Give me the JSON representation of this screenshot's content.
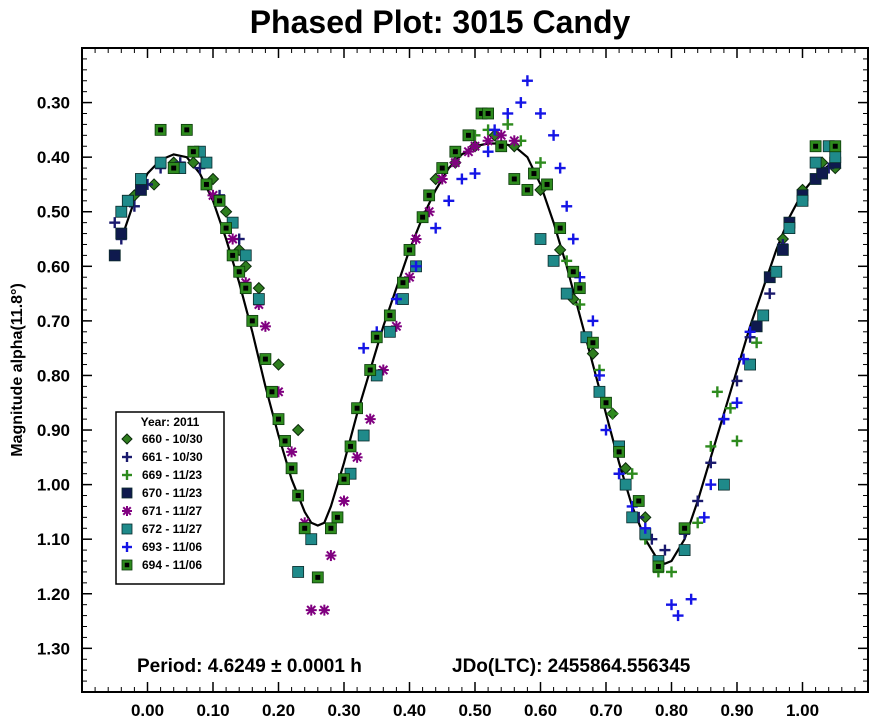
{
  "chart_data": {
    "type": "scatter",
    "title": "Phased Plot: 3015 Candy",
    "xlabel": "",
    "ylabel": "Magnitude alpha(11.8°)",
    "xlim": [
      -0.1,
      1.1
    ],
    "ylim": [
      0.2,
      1.38
    ],
    "y_inverted": true,
    "x_ticks": [
      "0.00",
      "0.10",
      "0.20",
      "0.30",
      "0.40",
      "0.50",
      "0.60",
      "0.70",
      "0.80",
      "0.90",
      "1.00"
    ],
    "y_ticks": [
      "0.30",
      "0.40",
      "0.50",
      "0.60",
      "0.70",
      "0.80",
      "0.90",
      "1.00",
      "1.10",
      "1.20",
      "1.30"
    ],
    "grid": false,
    "legend": {
      "placement": "lower-left",
      "title": "Year: 2011",
      "entries": [
        {
          "label": "660 - 10/30",
          "marker": "diamond",
          "color": "#2e7d1e"
        },
        {
          "label": "661 - 10/30",
          "marker": "plus",
          "color": "#1a1a6e"
        },
        {
          "label": "669 - 11/23",
          "marker": "plus",
          "color": "#2e8b1e"
        },
        {
          "label": "670 - 11/23",
          "marker": "square",
          "color": "#0f1a4e"
        },
        {
          "label": "671 - 11/27",
          "marker": "asterisk",
          "color": "#800080"
        },
        {
          "label": "672 - 11/27",
          "marker": "square",
          "color": "#1f8a8a"
        },
        {
          "label": "693 - 11/06",
          "marker": "plus",
          "color": "#1515e6"
        },
        {
          "label": "694 - 11/06",
          "marker": "square-dot",
          "color": "#2e8b1e"
        }
      ]
    },
    "fit_curve": {
      "color": "#000000",
      "points": [
        [
          -0.04,
          0.55
        ],
        [
          -0.02,
          0.48
        ],
        [
          0.0,
          0.43
        ],
        [
          0.02,
          0.405
        ],
        [
          0.04,
          0.395
        ],
        [
          0.06,
          0.4
        ],
        [
          0.08,
          0.43
        ],
        [
          0.1,
          0.48
        ],
        [
          0.12,
          0.55
        ],
        [
          0.14,
          0.63
        ],
        [
          0.16,
          0.72
        ],
        [
          0.18,
          0.82
        ],
        [
          0.2,
          0.91
        ],
        [
          0.22,
          0.99
        ],
        [
          0.24,
          1.05
        ],
        [
          0.25,
          1.07
        ],
        [
          0.26,
          1.075
        ],
        [
          0.27,
          1.07
        ],
        [
          0.28,
          1.04
        ],
        [
          0.3,
          0.96
        ],
        [
          0.32,
          0.87
        ],
        [
          0.34,
          0.79
        ],
        [
          0.36,
          0.71
        ],
        [
          0.38,
          0.64
        ],
        [
          0.4,
          0.57
        ],
        [
          0.42,
          0.51
        ],
        [
          0.44,
          0.46
        ],
        [
          0.46,
          0.42
        ],
        [
          0.48,
          0.395
        ],
        [
          0.5,
          0.38
        ],
        [
          0.52,
          0.375
        ],
        [
          0.54,
          0.375
        ],
        [
          0.56,
          0.38
        ],
        [
          0.58,
          0.4
        ],
        [
          0.6,
          0.45
        ],
        [
          0.62,
          0.52
        ],
        [
          0.64,
          0.6
        ],
        [
          0.66,
          0.69
        ],
        [
          0.68,
          0.78
        ],
        [
          0.7,
          0.87
        ],
        [
          0.72,
          0.96
        ],
        [
          0.74,
          1.04
        ],
        [
          0.76,
          1.1
        ],
        [
          0.78,
          1.14
        ],
        [
          0.79,
          1.145
        ],
        [
          0.8,
          1.14
        ],
        [
          0.82,
          1.1
        ],
        [
          0.84,
          1.03
        ],
        [
          0.86,
          0.95
        ],
        [
          0.88,
          0.87
        ],
        [
          0.9,
          0.79
        ],
        [
          0.92,
          0.71
        ],
        [
          0.94,
          0.64
        ],
        [
          0.96,
          0.57
        ],
        [
          0.98,
          0.51
        ],
        [
          1.0,
          0.465
        ],
        [
          1.02,
          0.435
        ],
        [
          1.04,
          0.415
        ],
        [
          1.05,
          0.41
        ]
      ]
    },
    "series": [
      {
        "name": "660 - 10/30",
        "points": [
          [
            -0.02,
            0.47
          ],
          [
            0.01,
            0.45
          ],
          [
            0.04,
            0.41
          ],
          [
            0.07,
            0.41
          ],
          [
            0.1,
            0.44
          ],
          [
            0.12,
            0.5
          ],
          [
            0.14,
            0.57
          ],
          [
            0.15,
            0.6
          ],
          [
            0.17,
            0.64
          ],
          [
            0.2,
            0.78
          ],
          [
            0.23,
            0.9
          ],
          [
            0.44,
            0.44
          ],
          [
            0.47,
            0.41
          ],
          [
            0.5,
            0.38
          ],
          [
            0.53,
            0.36
          ],
          [
            0.56,
            0.38
          ],
          [
            0.6,
            0.46
          ],
          [
            0.63,
            0.57
          ],
          [
            0.65,
            0.66
          ],
          [
            0.68,
            0.76
          ],
          [
            0.71,
            0.87
          ],
          [
            0.73,
            0.97
          ],
          [
            0.76,
            1.06
          ],
          [
            0.97,
            0.55
          ],
          [
            1.0,
            0.46
          ],
          [
            1.03,
            0.41
          ],
          [
            1.05,
            0.42
          ]
        ]
      },
      {
        "name": "661 - 10/30",
        "points": [
          [
            -0.05,
            0.52
          ],
          [
            -0.04,
            0.55
          ],
          [
            -0.02,
            0.49
          ],
          [
            0.0,
            0.45
          ],
          [
            0.02,
            0.42
          ],
          [
            0.05,
            0.41
          ],
          [
            0.08,
            0.42
          ],
          [
            0.11,
            0.47
          ],
          [
            0.14,
            0.55
          ],
          [
            0.72,
            0.98
          ],
          [
            0.75,
            1.06
          ],
          [
            0.77,
            1.1
          ],
          [
            0.79,
            1.12
          ],
          [
            0.82,
            1.09
          ],
          [
            0.84,
            1.03
          ],
          [
            0.86,
            0.96
          ],
          [
            0.88,
            0.88
          ],
          [
            0.9,
            0.81
          ],
          [
            0.92,
            0.73
          ],
          [
            0.95,
            0.65
          ],
          [
            0.97,
            0.56
          ],
          [
            1.0,
            0.48
          ],
          [
            1.02,
            0.44
          ],
          [
            1.04,
            0.42
          ]
        ]
      },
      {
        "name": "669 - 11/23",
        "points": [
          [
            0.5,
            0.36
          ],
          [
            0.52,
            0.35
          ],
          [
            0.55,
            0.34
          ],
          [
            0.57,
            0.37
          ],
          [
            0.6,
            0.41
          ],
          [
            0.64,
            0.59
          ],
          [
            0.66,
            0.67
          ],
          [
            0.69,
            0.79
          ],
          [
            0.71,
            0.87
          ],
          [
            0.74,
            0.98
          ],
          [
            0.76,
            1.1
          ],
          [
            0.78,
            1.16
          ],
          [
            0.8,
            1.16
          ],
          [
            0.82,
            1.12
          ],
          [
            0.84,
            1.07
          ],
          [
            0.86,
            0.93
          ],
          [
            0.87,
            0.83
          ],
          [
            0.89,
            0.86
          ],
          [
            0.9,
            0.92
          ],
          [
            0.93,
            0.74
          ]
        ]
      },
      {
        "name": "670 - 11/23",
        "points": [
          [
            -0.05,
            0.58
          ],
          [
            -0.04,
            0.54
          ],
          [
            -0.03,
            0.48
          ],
          [
            -0.01,
            0.46
          ],
          [
            0.93,
            0.71
          ],
          [
            0.95,
            0.62
          ],
          [
            0.97,
            0.57
          ],
          [
            0.98,
            0.52
          ],
          [
            1.0,
            0.47
          ],
          [
            1.02,
            0.44
          ],
          [
            1.03,
            0.43
          ],
          [
            1.05,
            0.41
          ]
        ]
      },
      {
        "name": "671 - 11/27",
        "points": [
          [
            0.1,
            0.47
          ],
          [
            0.13,
            0.55
          ],
          [
            0.15,
            0.63
          ],
          [
            0.17,
            0.67
          ],
          [
            0.18,
            0.71
          ],
          [
            0.2,
            0.83
          ],
          [
            0.22,
            0.94
          ],
          [
            0.23,
            1.02
          ],
          [
            0.24,
            1.07
          ],
          [
            0.25,
            1.23
          ],
          [
            0.27,
            1.23
          ],
          [
            0.28,
            1.13
          ],
          [
            0.3,
            1.03
          ],
          [
            0.32,
            0.95
          ],
          [
            0.34,
            0.88
          ],
          [
            0.36,
            0.79
          ],
          [
            0.38,
            0.71
          ],
          [
            0.4,
            0.62
          ],
          [
            0.41,
            0.55
          ],
          [
            0.43,
            0.5
          ],
          [
            0.45,
            0.44
          ],
          [
            0.47,
            0.41
          ],
          [
            0.49,
            0.39
          ],
          [
            0.5,
            0.38
          ],
          [
            0.52,
            0.37
          ],
          [
            0.54,
            0.36
          ],
          [
            0.56,
            0.37
          ]
        ]
      },
      {
        "name": "672 - 11/27",
        "points": [
          [
            -0.04,
            0.5
          ],
          [
            -0.03,
            0.48
          ],
          [
            -0.01,
            0.44
          ],
          [
            0.02,
            0.41
          ],
          [
            0.05,
            0.42
          ],
          [
            0.08,
            0.39
          ],
          [
            0.09,
            0.41
          ],
          [
            0.13,
            0.52
          ],
          [
            0.15,
            0.58
          ],
          [
            0.17,
            0.66
          ],
          [
            0.23,
            1.16
          ],
          [
            0.25,
            1.1
          ],
          [
            0.31,
            0.98
          ],
          [
            0.33,
            0.91
          ],
          [
            0.35,
            0.8
          ],
          [
            0.37,
            0.72
          ],
          [
            0.39,
            0.66
          ],
          [
            0.41,
            0.6
          ],
          [
            0.6,
            0.55
          ],
          [
            0.62,
            0.59
          ],
          [
            0.64,
            0.65
          ],
          [
            0.67,
            0.73
          ],
          [
            0.69,
            0.83
          ],
          [
            0.72,
            0.93
          ],
          [
            0.73,
            1.0
          ],
          [
            0.74,
            1.06
          ],
          [
            0.76,
            1.09
          ],
          [
            0.78,
            1.14
          ],
          [
            0.82,
            1.12
          ],
          [
            0.88,
            1.0
          ],
          [
            0.92,
            0.78
          ],
          [
            0.94,
            0.69
          ],
          [
            0.96,
            0.61
          ],
          [
            0.98,
            0.53
          ],
          [
            1.0,
            0.48
          ],
          [
            1.02,
            0.41
          ],
          [
            1.04,
            0.38
          ],
          [
            1.05,
            0.4
          ]
        ]
      },
      {
        "name": "693 - 11/06",
        "points": [
          [
            0.33,
            0.75
          ],
          [
            0.35,
            0.72
          ],
          [
            0.38,
            0.66
          ],
          [
            0.41,
            0.6
          ],
          [
            0.44,
            0.53
          ],
          [
            0.46,
            0.48
          ],
          [
            0.48,
            0.44
          ],
          [
            0.5,
            0.43
          ],
          [
            0.52,
            0.39
          ],
          [
            0.53,
            0.35
          ],
          [
            0.55,
            0.32
          ],
          [
            0.57,
            0.3
          ],
          [
            0.58,
            0.26
          ],
          [
            0.6,
            0.32
          ],
          [
            0.62,
            0.36
          ],
          [
            0.63,
            0.42
          ],
          [
            0.64,
            0.49
          ],
          [
            0.65,
            0.55
          ],
          [
            0.66,
            0.62
          ],
          [
            0.68,
            0.7
          ],
          [
            0.69,
            0.8
          ],
          [
            0.7,
            0.9
          ],
          [
            0.72,
            0.98
          ],
          [
            0.74,
            1.04
          ],
          [
            0.76,
            1.08
          ],
          [
            0.8,
            1.22
          ],
          [
            0.81,
            1.24
          ],
          [
            0.83,
            1.21
          ],
          [
            0.85,
            1.06
          ],
          [
            0.86,
            1.0
          ],
          [
            0.88,
            0.88
          ],
          [
            0.9,
            0.85
          ],
          [
            0.91,
            0.77
          ],
          [
            0.92,
            0.72
          ]
        ]
      },
      {
        "name": "694 - 11/06",
        "points": [
          [
            0.02,
            0.35
          ],
          [
            0.04,
            0.42
          ],
          [
            0.06,
            0.35
          ],
          [
            0.07,
            0.39
          ],
          [
            0.09,
            0.45
          ],
          [
            0.11,
            0.48
          ],
          [
            0.12,
            0.53
          ],
          [
            0.13,
            0.58
          ],
          [
            0.14,
            0.61
          ],
          [
            0.15,
            0.64
          ],
          [
            0.16,
            0.7
          ],
          [
            0.18,
            0.77
          ],
          [
            0.19,
            0.83
          ],
          [
            0.2,
            0.88
          ],
          [
            0.21,
            0.92
          ],
          [
            0.22,
            0.97
          ],
          [
            0.23,
            1.02
          ],
          [
            0.24,
            1.08
          ],
          [
            0.26,
            1.17
          ],
          [
            0.28,
            1.08
          ],
          [
            0.29,
            1.06
          ],
          [
            0.3,
            0.99
          ],
          [
            0.31,
            0.93
          ],
          [
            0.32,
            0.86
          ],
          [
            0.34,
            0.79
          ],
          [
            0.35,
            0.73
          ],
          [
            0.37,
            0.69
          ],
          [
            0.39,
            0.63
          ],
          [
            0.4,
            0.57
          ],
          [
            0.42,
            0.51
          ],
          [
            0.43,
            0.47
          ],
          [
            0.45,
            0.42
          ],
          [
            0.47,
            0.39
          ],
          [
            0.49,
            0.36
          ],
          [
            0.51,
            0.32
          ],
          [
            0.52,
            0.32
          ],
          [
            0.54,
            0.38
          ],
          [
            0.56,
            0.44
          ],
          [
            0.58,
            0.46
          ],
          [
            0.59,
            0.43
          ],
          [
            0.61,
            0.45
          ],
          [
            0.63,
            0.53
          ],
          [
            0.65,
            0.61
          ],
          [
            0.66,
            0.64
          ],
          [
            0.68,
            0.74
          ],
          [
            0.7,
            0.85
          ],
          [
            0.72,
            0.94
          ],
          [
            0.75,
            1.03
          ],
          [
            0.78,
            1.15
          ],
          [
            0.82,
            1.08
          ],
          [
            1.02,
            0.38
          ],
          [
            1.05,
            0.38
          ]
        ]
      }
    ],
    "annotation": {
      "period": "Period: 4.6249 ± 0.0001 h",
      "epoch": "JDo(LTC): 2455864.556345"
    }
  }
}
